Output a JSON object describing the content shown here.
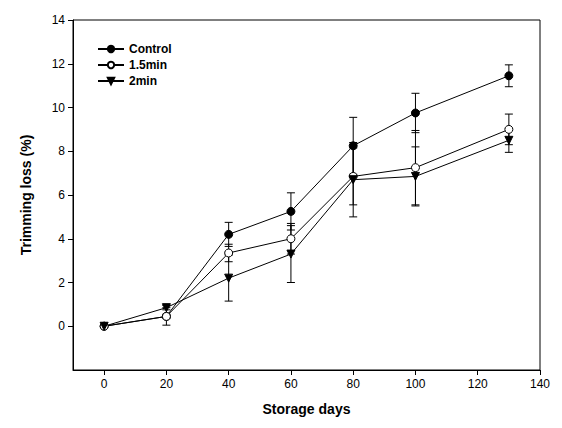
{
  "chart_data": {
    "type": "line",
    "x_label": "Storage days",
    "y_label": "Trimming loss (%)",
    "xlim": [
      -10,
      140
    ],
    "xticks": [
      0,
      20,
      40,
      60,
      80,
      100,
      120,
      140
    ],
    "ylim": [
      -2,
      14
    ],
    "yticks": [
      0,
      2,
      4,
      6,
      8,
      10,
      12,
      14
    ],
    "grid": false,
    "legend": "upper left",
    "x": [
      0,
      20,
      40,
      60,
      80,
      100,
      130
    ],
    "series": [
      {
        "name": "Control",
        "color": "#000000",
        "marker": "filled_circle",
        "line_style": "solid",
        "values": [
          0,
          0.45,
          4.2,
          5.25,
          8.25,
          9.75,
          11.45
        ],
        "errors": [
          0,
          0.1,
          0.55,
          0.85,
          1.3,
          0.9,
          0.5
        ]
      },
      {
        "name": "1.5min",
        "color": "#000000",
        "marker": "open_circle",
        "line_style": "solid",
        "values": [
          0,
          0.45,
          3.35,
          4.0,
          6.85,
          7.25,
          9.0
        ],
        "errors": [
          0,
          0.4,
          0.4,
          0.7,
          1.3,
          1.7,
          0.7
        ]
      },
      {
        "name": "2min",
        "color": "#000000",
        "marker": "filled_triangle_down",
        "line_style": "solid",
        "values": [
          0,
          0.85,
          2.2,
          3.3,
          6.7,
          6.85,
          8.5
        ],
        "errors": [
          0,
          0.1,
          1.05,
          1.3,
          1.7,
          1.35,
          0.55
        ]
      }
    ]
  }
}
